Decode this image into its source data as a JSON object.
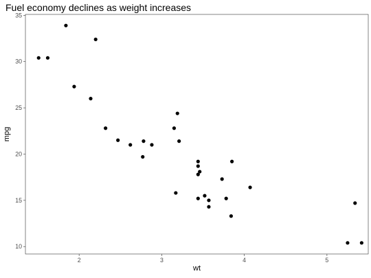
{
  "chart_data": {
    "type": "scatter",
    "title": "Fuel economy declines as weight increases",
    "xlabel": "wt",
    "ylabel": "mpg",
    "xlim": [
      1.35,
      5.5
    ],
    "ylim": [
      9.2,
      35.1
    ],
    "xticks": [
      2,
      3,
      4,
      5
    ],
    "yticks": [
      10,
      15,
      20,
      25,
      30,
      35
    ],
    "grid": false,
    "legend": "none",
    "point_color": "#000000",
    "points": [
      {
        "x": 1.51,
        "y": 30.4
      },
      {
        "x": 1.62,
        "y": 30.4
      },
      {
        "x": 1.84,
        "y": 33.9
      },
      {
        "x": 1.94,
        "y": 27.3
      },
      {
        "x": 2.14,
        "y": 26.0
      },
      {
        "x": 2.2,
        "y": 32.4
      },
      {
        "x": 2.32,
        "y": 22.8
      },
      {
        "x": 2.47,
        "y": 21.5
      },
      {
        "x": 2.62,
        "y": 21.0
      },
      {
        "x": 2.77,
        "y": 19.7
      },
      {
        "x": 2.78,
        "y": 21.4
      },
      {
        "x": 2.88,
        "y": 21.0
      },
      {
        "x": 3.15,
        "y": 22.8
      },
      {
        "x": 3.17,
        "y": 15.8
      },
      {
        "x": 3.19,
        "y": 24.4
      },
      {
        "x": 3.21,
        "y": 21.4
      },
      {
        "x": 3.44,
        "y": 18.7
      },
      {
        "x": 3.44,
        "y": 19.2
      },
      {
        "x": 3.44,
        "y": 17.8
      },
      {
        "x": 3.44,
        "y": 15.2
      },
      {
        "x": 3.46,
        "y": 18.1
      },
      {
        "x": 3.52,
        "y": 15.5
      },
      {
        "x": 3.57,
        "y": 15.0
      },
      {
        "x": 3.57,
        "y": 14.3
      },
      {
        "x": 3.73,
        "y": 17.3
      },
      {
        "x": 3.78,
        "y": 15.2
      },
      {
        "x": 3.84,
        "y": 13.3
      },
      {
        "x": 3.85,
        "y": 19.2
      },
      {
        "x": 4.07,
        "y": 16.4
      },
      {
        "x": 5.25,
        "y": 10.4
      },
      {
        "x": 5.34,
        "y": 14.7
      },
      {
        "x": 5.42,
        "y": 10.4
      }
    ]
  }
}
